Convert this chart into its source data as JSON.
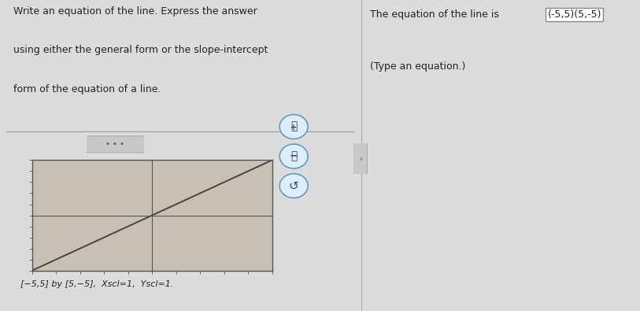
{
  "left_text_lines": [
    "Write an equation of the line. Express the answer",
    "using either the general form or the slope-intercept",
    "form of the equation of a line."
  ],
  "right_text_line1": "The equation of the line is",
  "right_text_box": "(-5,5)(5,-5)",
  "right_text_line2": "(Type an equation.)",
  "xlabel_bottom": "[−5,5] by [5,−5],  Xscl=1,  Yscl=1.",
  "xmin": -5,
  "xmax": 5,
  "ymin": -5,
  "ymax": 5,
  "line_x": [
    -5,
    5
  ],
  "line_y": [
    5,
    -5
  ],
  "bg_left": "#dcdcdc",
  "bg_right": "#e8e8e8",
  "plot_bg_color": "#c8c0b4",
  "line_color": "#444444",
  "axis_color": "#555555",
  "tick_color": "#555555",
  "border_color": "#555555",
  "text_color": "#222222",
  "divider_color": "#aaaaaa",
  "btn_color": "#c8c8c8",
  "zoom_circle_bg": "#ddeeff",
  "zoom_circle_border": "#6699bb"
}
